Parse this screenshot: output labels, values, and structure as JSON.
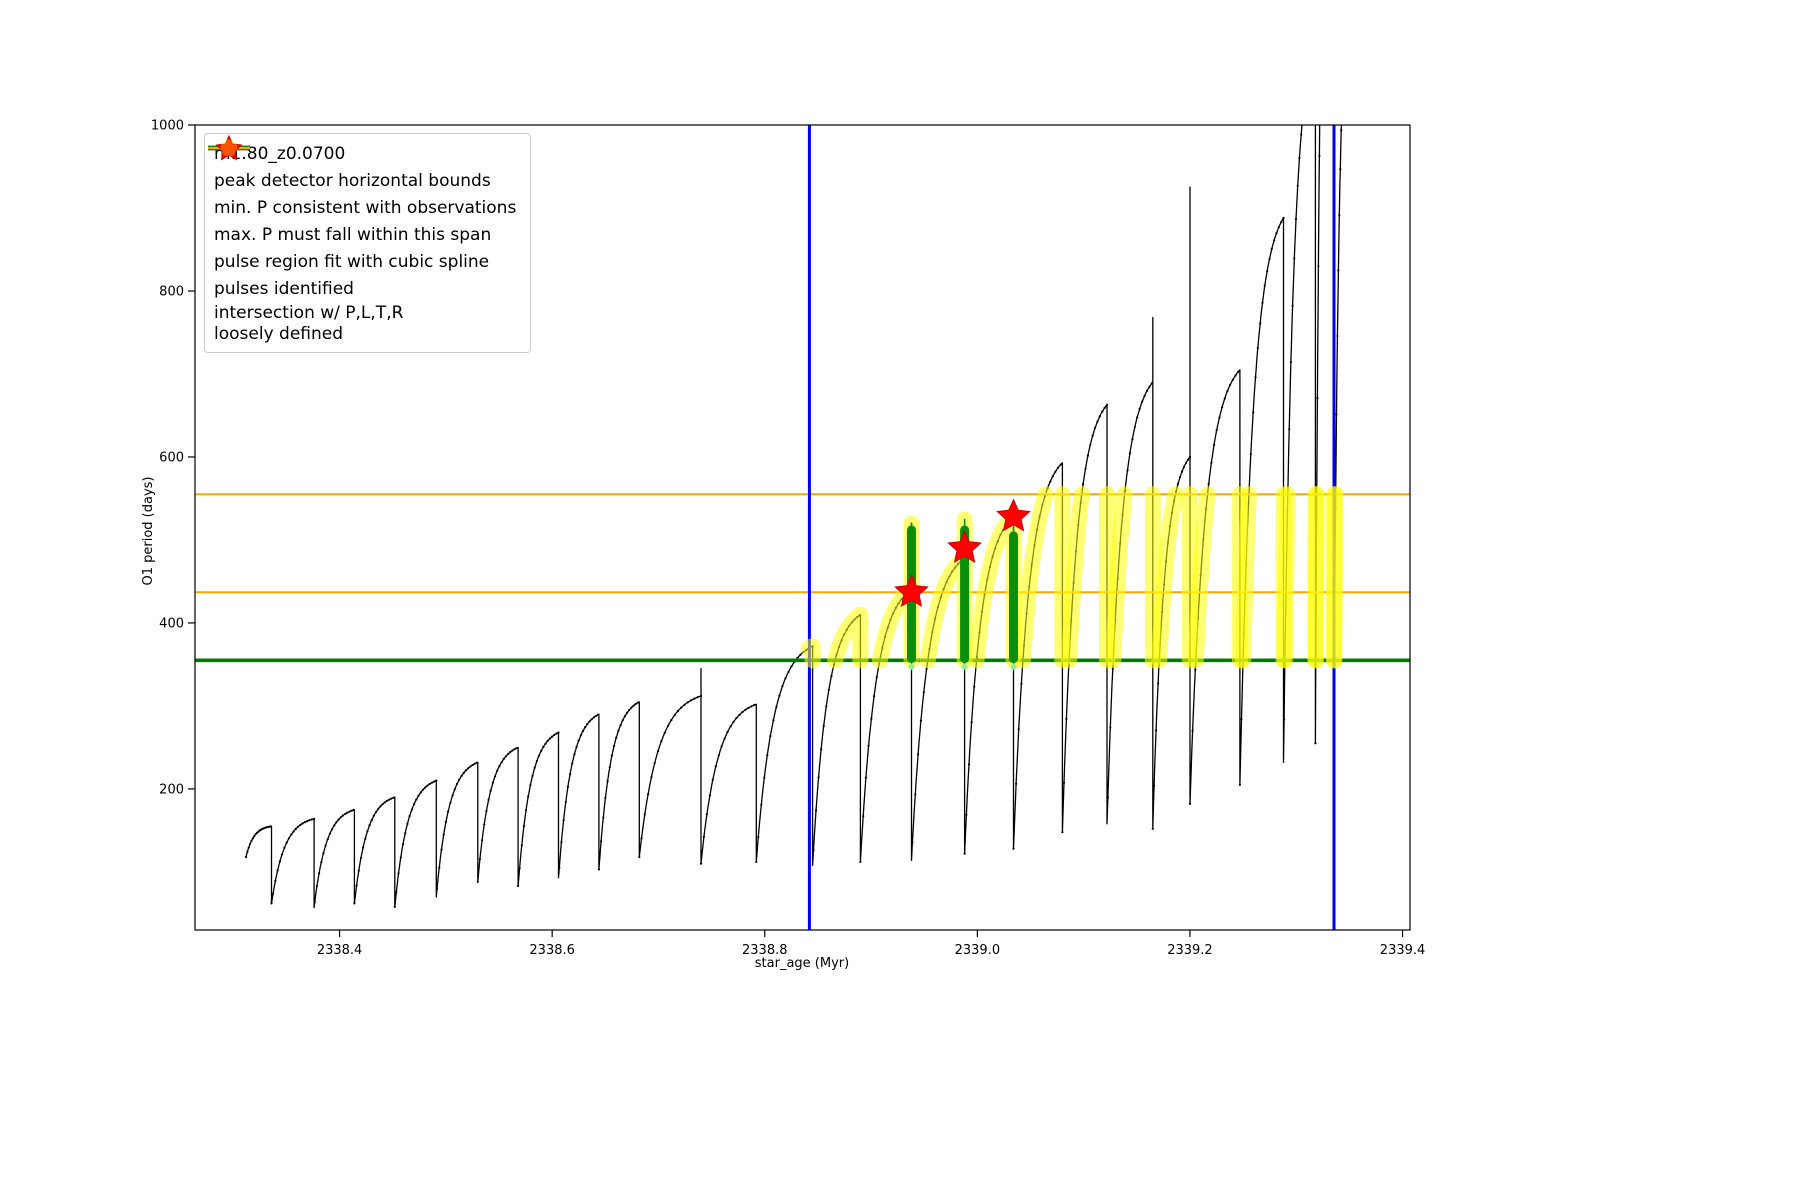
{
  "chart_data": {
    "type": "line",
    "title": "",
    "xlabel": "star_age (Myr)",
    "ylabel": "O1 period (days)",
    "xlim": [
      2338.264,
      2339.407
    ],
    "ylim": [
      30,
      1000
    ],
    "xticks": [
      "2338.4",
      "2338.6",
      "2338.8",
      "2339.0",
      "2339.2",
      "2339.4"
    ],
    "yticks": [
      "200",
      "400",
      "600",
      "800",
      "1000"
    ],
    "grid": false,
    "legend_position": "upper-left",
    "series": [
      {
        "name": "m1.80_z0.0700",
        "color": "#000000",
        "teeth": [
          {
            "xs": 2338.312,
            "xe": 2338.336,
            "y0": 118,
            "yp": 155,
            "yd": 62
          },
          {
            "xs": 2338.336,
            "xe": 2338.376,
            "y0": 62,
            "yp": 164,
            "yd": 57
          },
          {
            "xs": 2338.376,
            "xe": 2338.414,
            "y0": 57,
            "yp": 175,
            "yd": 62
          },
          {
            "xs": 2338.414,
            "xe": 2338.452,
            "y0": 62,
            "yp": 190,
            "yd": 58
          },
          {
            "xs": 2338.452,
            "xe": 2338.491,
            "y0": 58,
            "yp": 210,
            "yd": 70
          },
          {
            "xs": 2338.491,
            "xe": 2338.53,
            "y0": 70,
            "yp": 232,
            "yd": 88
          },
          {
            "xs": 2338.53,
            "xe": 2338.568,
            "y0": 88,
            "yp": 250,
            "yd": 83
          },
          {
            "xs": 2338.568,
            "xe": 2338.606,
            "y0": 83,
            "yp": 268,
            "yd": 93
          },
          {
            "xs": 2338.606,
            "xe": 2338.644,
            "y0": 93,
            "yp": 290,
            "yd": 103
          },
          {
            "xs": 2338.644,
            "xe": 2338.682,
            "y0": 103,
            "yp": 305,
            "yd": 118
          },
          {
            "xs": 2338.682,
            "xe": 2338.74,
            "y0": 118,
            "yp": 312,
            "yd": 110,
            "spike": 345
          },
          {
            "xs": 2338.74,
            "xe": 2338.792,
            "y0": 110,
            "yp": 302,
            "yd": 112
          },
          {
            "xs": 2338.792,
            "xe": 2338.845,
            "y0": 112,
            "yp": 372,
            "yd": 108
          },
          {
            "xs": 2338.845,
            "xe": 2338.89,
            "y0": 108,
            "yp": 410,
            "yd": 112
          },
          {
            "xs": 2338.89,
            "xe": 2338.938,
            "y0": 112,
            "yp": 440,
            "yd": 114,
            "spike": 520
          },
          {
            "xs": 2338.938,
            "xe": 2338.988,
            "y0": 114,
            "yp": 478,
            "yd": 122,
            "spike": 525
          },
          {
            "xs": 2338.988,
            "xe": 2339.034,
            "y0": 122,
            "yp": 528,
            "yd": 128,
            "spike": 532
          },
          {
            "xs": 2339.034,
            "xe": 2339.08,
            "y0": 128,
            "yp": 593,
            "yd": 148
          },
          {
            "xs": 2339.08,
            "xe": 2339.122,
            "y0": 148,
            "yp": 663,
            "yd": 158
          },
          {
            "xs": 2339.122,
            "xe": 2339.165,
            "y0": 158,
            "yp": 690,
            "yd": 152,
            "spike": 768
          },
          {
            "xs": 2339.165,
            "xe": 2339.2,
            "y0": 152,
            "yp": 600,
            "yd": 182,
            "spike": 925
          },
          {
            "xs": 2339.2,
            "xe": 2339.247,
            "y0": 182,
            "yp": 705,
            "yd": 205
          },
          {
            "xs": 2339.247,
            "xe": 2339.288,
            "y0": 205,
            "yp": 888,
            "yd": 232
          },
          {
            "xs": 2339.288,
            "xe": 2339.318,
            "y0": 232,
            "yp": 1100,
            "yd": 255
          },
          {
            "xs": 2339.318,
            "xe": 2339.3355,
            "y0": 255,
            "yp": 1600,
            "yd": 300
          },
          {
            "xs": 2339.3355,
            "xe": 2339.352,
            "y0": 300,
            "yp": 1200
          }
        ]
      }
    ],
    "peak_detector_bounds": {
      "color": "#0000ff",
      "x_values": [
        2338.842,
        2339.3355
      ],
      "label": "peak detector horizontal bounds"
    },
    "min_P_line": {
      "color": "#007d00",
      "y": 355,
      "label": "min. P consistent with observations"
    },
    "max_P_span": {
      "color": "#ffa500",
      "y_values": [
        437,
        555
      ],
      "label": "max. P must fall within this span"
    },
    "intersection_band": {
      "color": "#ffff00",
      "y_range": [
        355,
        555
      ],
      "x_range": [
        2338.842,
        2339.341
      ],
      "label": "intersection w/ P,L,T,R loosely defined"
    },
    "spline_regions": {
      "color": "#0a8f0a",
      "dot_color": "#90ee90",
      "regions": [
        {
          "x": 2338.938,
          "y_range": [
            357,
            512
          ],
          "spike_top": 520
        },
        {
          "x": 2338.988,
          "y_range": [
            357,
            512
          ],
          "spike_top": 525
        },
        {
          "x": 2339.034,
          "y_range": [
            357,
            505
          ],
          "spike_top": 530
        }
      ]
    },
    "pulses": {
      "color": "#ff0000",
      "points": [
        {
          "x": 2338.938,
          "y": 437
        },
        {
          "x": 2338.988,
          "y": 490
        },
        {
          "x": 2339.034,
          "y": 528
        }
      ]
    },
    "legend": [
      {
        "marker": "line-dot",
        "color": "#000000",
        "label": "m1.80_z0.0700"
      },
      {
        "marker": "thick-line",
        "color": "#0000ff",
        "label": "peak detector horizontal bounds"
      },
      {
        "marker": "thick-line",
        "color": "#007d00",
        "label": "min. P consistent with observations"
      },
      {
        "marker": "line",
        "color": "#ffa500",
        "label": "max. P must fall within this span"
      },
      {
        "marker": "small-dot",
        "color": "#90ee90",
        "label": "pulse region fit with cubic spline"
      },
      {
        "marker": "star",
        "color": "#ff0000",
        "label": "pulses identified"
      },
      {
        "marker": "big-dot",
        "color": "#ffff66",
        "label": "intersection w/ P,L,T,R",
        "label2": "loosely defined"
      }
    ]
  }
}
